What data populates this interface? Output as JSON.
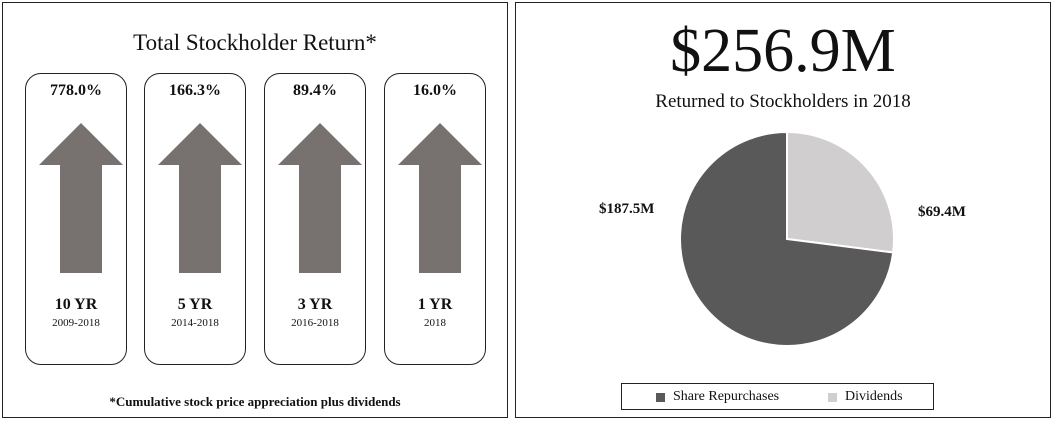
{
  "left": {
    "title": "Total Stockholder Return*",
    "footnote": "*Cumulative stock price appreciation plus dividends",
    "arrow_color": "#777270",
    "cards": [
      {
        "pct": "778.0%",
        "period": "10 YR",
        "range": "2009-2018"
      },
      {
        "pct": "166.3%",
        "period": "5 YR",
        "range": "2014-2018"
      },
      {
        "pct": "89.4%",
        "period": "3 YR",
        "range": "2016-2018"
      },
      {
        "pct": "16.0%",
        "period": "1 YR",
        "range": "2018"
      }
    ]
  },
  "right": {
    "total": "$256.9M",
    "subtitle": "Returned to Stockholders in 2018"
  },
  "chart_data": {
    "type": "pie",
    "title": "Returned to Stockholders in 2018",
    "total": 256.9,
    "unit": "$M",
    "legend_position": "bottom",
    "slices": [
      {
        "name": "Share Repurchases",
        "value": 187.5,
        "label": "$187.5M",
        "color": "#595959"
      },
      {
        "name": "Dividends",
        "value": 69.4,
        "label": "$69.4M",
        "color": "#d0cece"
      }
    ]
  }
}
